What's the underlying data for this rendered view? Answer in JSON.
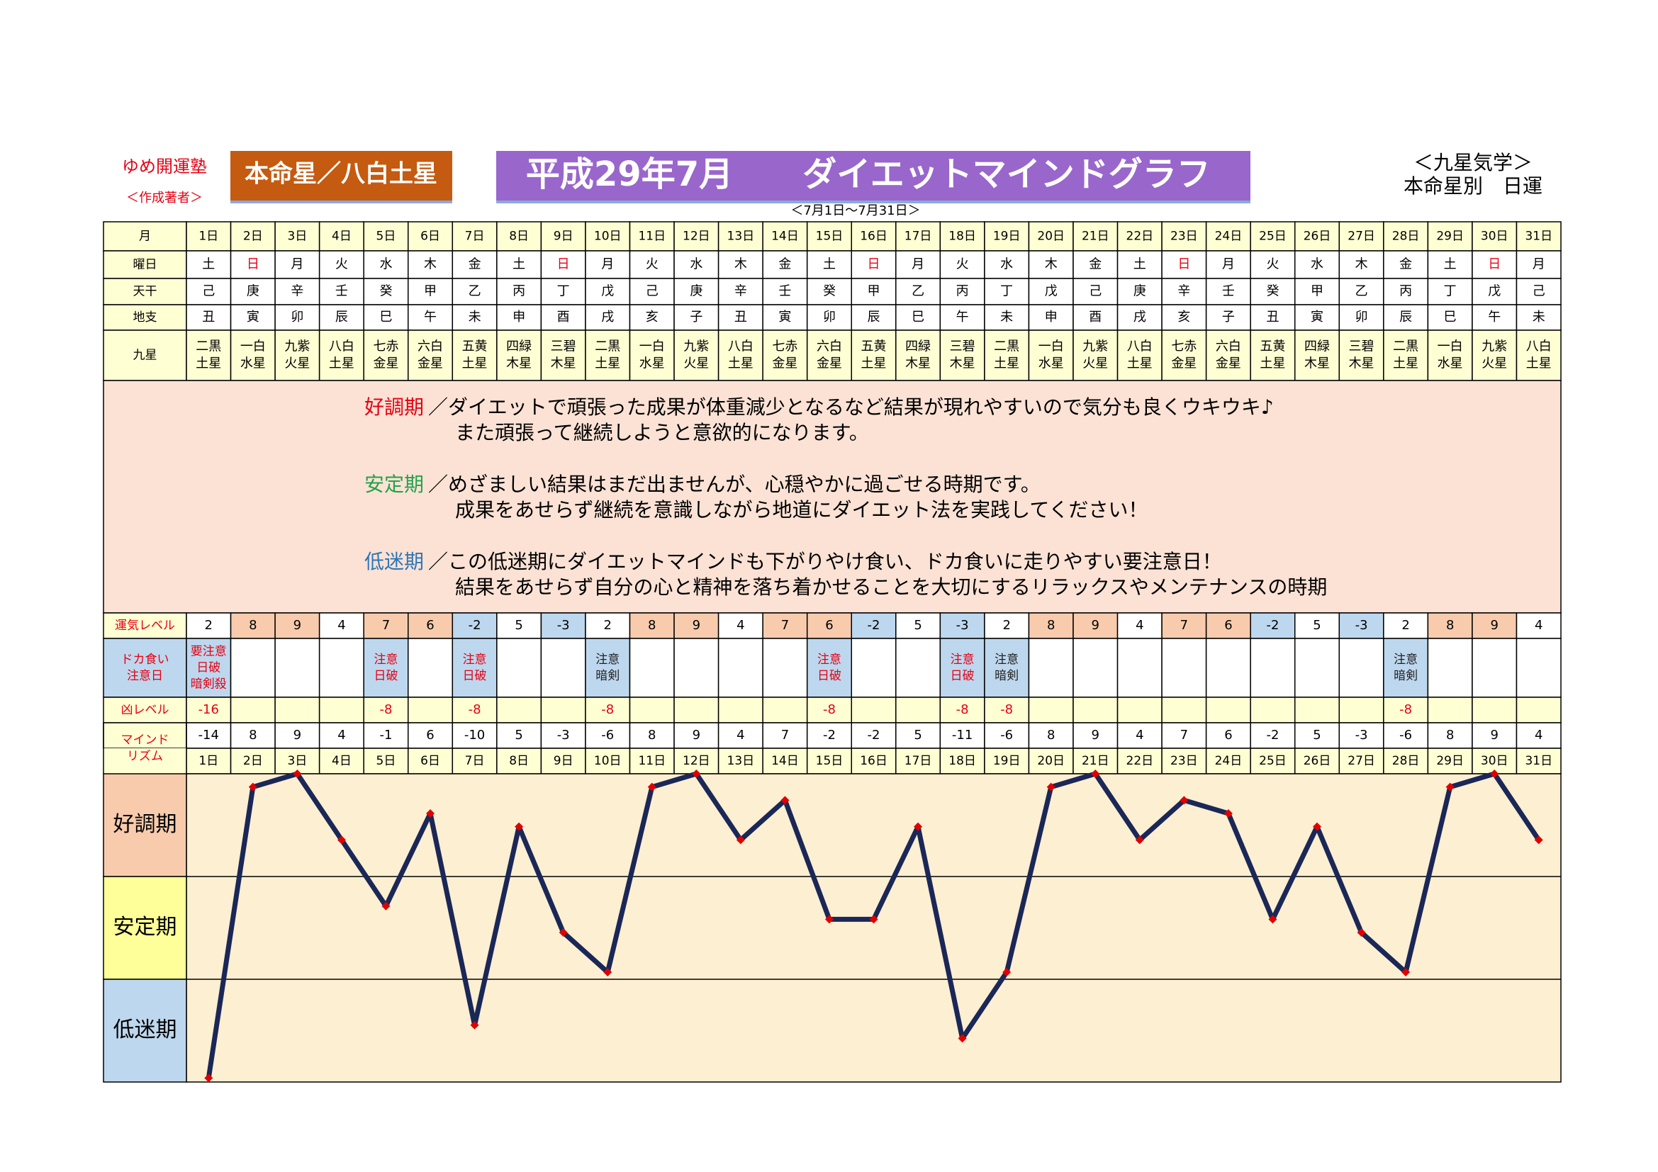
{
  "header": {
    "org": "ゆめ開運塾",
    "author": "＜作成著者＞",
    "star": "本命星／八白土星",
    "title_date": "平成29年7月",
    "title_main": "ダイエットマインドグラフ",
    "range": "＜7月1日〜7月31日＞",
    "school": "＜九星気学＞",
    "kind": "本命星別　日運"
  },
  "table": {
    "labels": {
      "day": "月",
      "weekday": "曜日",
      "tenkan": "天干",
      "chishi": "地支",
      "kyusei": "九星",
      "luck": "運気レベル",
      "caution": [
        "ドカ食い",
        "注意日"
      ],
      "bad": "凶レベル",
      "mind": [
        "マインド",
        "リズム"
      ]
    },
    "days": [
      "1日",
      "2日",
      "3日",
      "4日",
      "5日",
      "6日",
      "7日",
      "8日",
      "9日",
      "10日",
      "11日",
      "12日",
      "13日",
      "14日",
      "15日",
      "16日",
      "17日",
      "18日",
      "19日",
      "20日",
      "21日",
      "22日",
      "23日",
      "24日",
      "25日",
      "26日",
      "27日",
      "28日",
      "29日",
      "30日",
      "31日"
    ],
    "weekdays": [
      "土",
      "日",
      "月",
      "火",
      "水",
      "木",
      "金",
      "土",
      "日",
      "月",
      "火",
      "水",
      "木",
      "金",
      "土",
      "日",
      "月",
      "火",
      "水",
      "木",
      "金",
      "土",
      "日",
      "月",
      "火",
      "水",
      "木",
      "金",
      "土",
      "日",
      "月"
    ],
    "weekday_red": "日",
    "weekday_red_color": "#e60012",
    "tenkan": [
      "己",
      "庚",
      "辛",
      "壬",
      "癸",
      "甲",
      "乙",
      "丙",
      "丁",
      "戊",
      "己",
      "庚",
      "辛",
      "壬",
      "癸",
      "甲",
      "乙",
      "丙",
      "丁",
      "戊",
      "己",
      "庚",
      "辛",
      "壬",
      "癸",
      "甲",
      "乙",
      "丙",
      "丁",
      "戊",
      "己"
    ],
    "chishi": [
      "丑",
      "寅",
      "卯",
      "辰",
      "巳",
      "午",
      "未",
      "申",
      "酉",
      "戌",
      "亥",
      "子",
      "丑",
      "寅",
      "卯",
      "辰",
      "巳",
      "午",
      "未",
      "申",
      "酉",
      "戌",
      "亥",
      "子",
      "丑",
      "寅",
      "卯",
      "辰",
      "巳",
      "午",
      "未"
    ],
    "kyusei": [
      [
        "二黒",
        "土星"
      ],
      [
        "一白",
        "水星"
      ],
      [
        "九紫",
        "火星"
      ],
      [
        "八白",
        "土星"
      ],
      [
        "七赤",
        "金星"
      ],
      [
        "六白",
        "金星"
      ],
      [
        "五黄",
        "土星"
      ],
      [
        "四緑",
        "木星"
      ],
      [
        "三碧",
        "木星"
      ],
      [
        "二黒",
        "土星"
      ],
      [
        "一白",
        "水星"
      ],
      [
        "九紫",
        "火星"
      ],
      [
        "八白",
        "土星"
      ],
      [
        "七赤",
        "金星"
      ],
      [
        "六白",
        "金星"
      ],
      [
        "五黄",
        "土星"
      ],
      [
        "四緑",
        "木星"
      ],
      [
        "三碧",
        "木星"
      ],
      [
        "二黒",
        "土星"
      ],
      [
        "一白",
        "水星"
      ],
      [
        "九紫",
        "火星"
      ],
      [
        "八白",
        "土星"
      ],
      [
        "七赤",
        "金星"
      ],
      [
        "六白",
        "金星"
      ],
      [
        "五黄",
        "土星"
      ],
      [
        "四緑",
        "木星"
      ],
      [
        "三碧",
        "木星"
      ],
      [
        "二黒",
        "土星"
      ],
      [
        "一白",
        "水星"
      ],
      [
        "九紫",
        "火星"
      ],
      [
        "八白",
        "土星"
      ]
    ],
    "luck": [
      2,
      8,
      9,
      4,
      7,
      6,
      -2,
      5,
      -3,
      2,
      8,
      9,
      4,
      7,
      6,
      -2,
      5,
      -3,
      2,
      8,
      9,
      4,
      7,
      6,
      -2,
      5,
      -3,
      2,
      8,
      9,
      4
    ],
    "caution": [
      {
        "lines": [
          "要注意",
          "日破",
          "暗剣殺"
        ],
        "color": "#e60012"
      },
      null,
      null,
      null,
      {
        "lines": [
          "注意",
          "日破"
        ],
        "color": "#e60012"
      },
      null,
      {
        "lines": [
          "注意",
          "日破"
        ],
        "color": "#e60012"
      },
      null,
      null,
      {
        "lines": [
          "注意",
          "暗剣"
        ],
        "color": "#222222"
      },
      null,
      null,
      null,
      null,
      {
        "lines": [
          "注意",
          "日破"
        ],
        "color": "#e60012"
      },
      null,
      null,
      {
        "lines": [
          "注意",
          "日破"
        ],
        "color": "#e60012"
      },
      {
        "lines": [
          "注意",
          "暗剣"
        ],
        "color": "#222222"
      },
      null,
      null,
      null,
      null,
      null,
      null,
      null,
      null,
      {
        "lines": [
          "注意",
          "暗剣"
        ],
        "color": "#222222"
      },
      null,
      null,
      null
    ],
    "bad": [
      -16,
      null,
      null,
      null,
      -8,
      null,
      -8,
      null,
      null,
      -8,
      null,
      null,
      null,
      null,
      -8,
      null,
      null,
      -8,
      -8,
      null,
      null,
      null,
      null,
      null,
      null,
      null,
      null,
      -8,
      null,
      null,
      null
    ],
    "mind": [
      -14,
      8,
      9,
      4,
      -1,
      6,
      -10,
      5,
      -3,
      -6,
      8,
      9,
      4,
      7,
      -2,
      -2,
      5,
      -11,
      -6,
      8,
      9,
      4,
      7,
      6,
      -2,
      5,
      -3,
      -6,
      8,
      9,
      4
    ]
  },
  "notes": [
    {
      "head": "好調期",
      "color": "#e60012",
      "lines": [
        "／ダイエットで頑張った成果が体重減少となるなど結果が現れやすいので気分も良くウキウキ♪",
        "また頑張って継続しようと意欲的になります。"
      ]
    },
    {
      "head": "安定期",
      "color": "#22a34a",
      "lines": [
        "／めざましい結果はまだ出ませんが、心穏やかに過ごせる時期です。",
        "成果をあせらず継続を意識しながら地道にダイエット法を実践してください！"
      ]
    },
    {
      "head": "低迷期",
      "color": "#2e75b6",
      "lines": [
        "／この低迷期にダイエットマインドも下がりやけ食い、ドカ食いに走りやすい要注意日！",
        "結果をあせらず自分の心と精神を落ち着かせることを大切にするリラックスやメンテナンスの時期"
      ]
    }
  ],
  "chart_data": {
    "type": "line",
    "values": [
      -14,
      8,
      9,
      4,
      -1,
      6,
      -10,
      5,
      -3,
      -6,
      8,
      9,
      4,
      7,
      -2,
      -2,
      5,
      -11,
      -6,
      8,
      9,
      4,
      7,
      6,
      -2,
      5,
      -3,
      -6,
      8,
      9,
      4
    ],
    "ylim": [
      -14.3,
      9
    ],
    "bands": [
      "好調期",
      "安定期",
      "低迷期"
    ],
    "band_colors": [
      "#f8cbad",
      "#ffff99",
      "#bdd7ee"
    ],
    "color": "#1a2757",
    "marker_color": "#e00000"
  }
}
